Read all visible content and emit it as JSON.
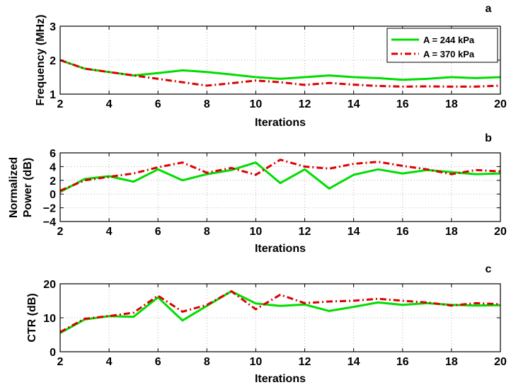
{
  "colors": {
    "series_1": "#00dd00",
    "series_2": "#dd0000",
    "grid": "#b4b4b4",
    "axis": "#000000"
  },
  "legend": {
    "placement": "top-right",
    "entries": [
      "A = 244 kPa",
      "A = 370 kPa"
    ]
  },
  "chart_data": [
    {
      "type": "line",
      "panel_label": "a",
      "xlabel": "Iterations",
      "ylabel": "Frequency (MHz)",
      "xlim": [
        2,
        20
      ],
      "ylim": [
        1,
        3
      ],
      "xticks": [
        "2",
        "4",
        "6",
        "8",
        "10",
        "12",
        "14",
        "16",
        "18",
        "20"
      ],
      "yticks": [
        "1",
        "2",
        "3"
      ],
      "grid": true,
      "legend": "top-right",
      "x": [
        2,
        3,
        4,
        5,
        6,
        7,
        8,
        9,
        10,
        11,
        12,
        13,
        14,
        15,
        16,
        17,
        18,
        19,
        20
      ],
      "series": [
        {
          "name": "A = 244 kPa",
          "style": "solid",
          "values": [
            2.0,
            1.75,
            1.65,
            1.55,
            1.62,
            1.7,
            1.65,
            1.58,
            1.5,
            1.45,
            1.5,
            1.55,
            1.5,
            1.47,
            1.42,
            1.45,
            1.5,
            1.47,
            1.5
          ]
        },
        {
          "name": "A = 370 kPa",
          "style": "dashdot",
          "values": [
            2.0,
            1.75,
            1.65,
            1.55,
            1.45,
            1.35,
            1.25,
            1.32,
            1.4,
            1.35,
            1.27,
            1.33,
            1.28,
            1.24,
            1.22,
            1.23,
            1.22,
            1.22,
            1.25
          ]
        }
      ]
    },
    {
      "type": "line",
      "panel_label": "b",
      "xlabel": "Iterations",
      "ylabel": [
        "Normalized",
        "Power (dB)"
      ],
      "xlim": [
        2,
        20
      ],
      "ylim": [
        -4,
        6
      ],
      "xticks": [
        "2",
        "4",
        "6",
        "8",
        "10",
        "12",
        "14",
        "16",
        "18",
        "20"
      ],
      "yticks": [
        "−4",
        "−2",
        "0",
        "2",
        "4",
        "6"
      ],
      "grid": true,
      "x": [
        2,
        3,
        4,
        5,
        6,
        7,
        8,
        9,
        10,
        11,
        12,
        13,
        14,
        15,
        16,
        17,
        18,
        19,
        20
      ],
      "series": [
        {
          "name": "A = 244 kPa",
          "style": "solid",
          "values": [
            0.3,
            2.2,
            2.6,
            1.8,
            3.6,
            2.0,
            2.9,
            3.5,
            4.6,
            1.6,
            3.6,
            0.8,
            2.8,
            3.6,
            3.0,
            3.5,
            3.2,
            2.9,
            3.0
          ]
        },
        {
          "name": "A = 370 kPa",
          "style": "dashdot",
          "values": [
            0.5,
            2.0,
            2.5,
            3.0,
            3.9,
            4.6,
            3.1,
            3.8,
            2.8,
            5.0,
            4.0,
            3.7,
            4.4,
            4.7,
            4.1,
            3.6,
            2.9,
            3.5,
            3.3
          ]
        }
      ]
    },
    {
      "type": "line",
      "panel_label": "c",
      "xlabel": "Iterations",
      "ylabel": "CTR (dB)",
      "xlim": [
        2,
        20
      ],
      "ylim": [
        0,
        20
      ],
      "xticks": [
        "2",
        "4",
        "6",
        "8",
        "10",
        "12",
        "14",
        "16",
        "18",
        "20"
      ],
      "yticks": [
        "0",
        "10",
        "20"
      ],
      "grid": true,
      "x": [
        2,
        3,
        4,
        5,
        6,
        7,
        8,
        9,
        10,
        11,
        12,
        13,
        14,
        15,
        16,
        17,
        18,
        19,
        20
      ],
      "series": [
        {
          "name": "A = 244 kPa",
          "style": "solid",
          "values": [
            5.5,
            9.5,
            10.5,
            10.3,
            16.0,
            9.2,
            13.5,
            17.8,
            14.2,
            13.5,
            13.9,
            12.0,
            13.2,
            14.5,
            13.8,
            14.3,
            13.8,
            13.6,
            13.7
          ]
        },
        {
          "name": "A = 370 kPa",
          "style": "dashdot",
          "values": [
            5.8,
            9.7,
            10.5,
            11.5,
            16.5,
            11.8,
            13.8,
            17.8,
            12.5,
            16.8,
            14.3,
            14.8,
            15.0,
            15.6,
            15.0,
            14.5,
            13.6,
            14.3,
            14.0
          ]
        }
      ]
    }
  ]
}
